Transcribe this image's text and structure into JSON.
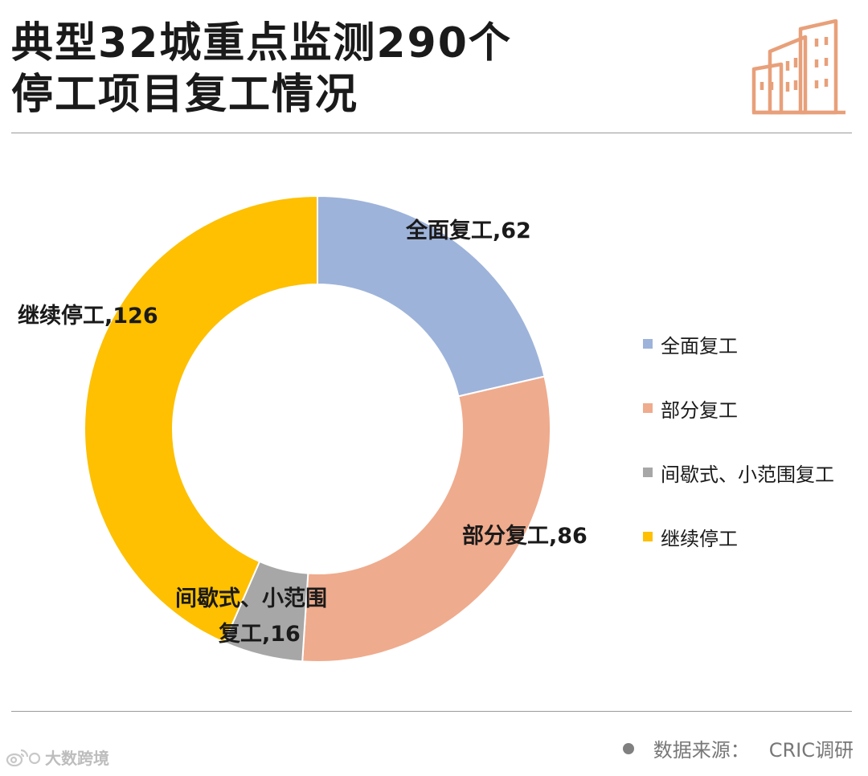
{
  "title": {
    "line1": "典型32城重点监测290个",
    "line2": "停工项目复工情况"
  },
  "icons": {
    "header": "buildings-icon",
    "watermark": "weibo-logo-icon"
  },
  "colors": {
    "full": "#9db3da",
    "partial": "#efab8d",
    "intermittent": "#a7a7a7",
    "stopped": "#fec000",
    "header_icon": "#e8a07a"
  },
  "chart_data": {
    "type": "pie",
    "variant": "donut",
    "title": "典型32城重点监测290个停工项目复工情况",
    "categories": [
      "全面复工",
      "部分复工",
      "间歇式、小范围复工",
      "继续停工"
    ],
    "values": [
      62,
      86,
      16,
      126
    ],
    "data_labels": [
      [
        "全面复工,62"
      ],
      [
        "部分复工,86"
      ],
      [
        "间歇式、小范围",
        "复工,16"
      ],
      [
        "继续停工,126"
      ]
    ],
    "legend": {
      "position": "right",
      "entries": [
        "全面复工",
        "部分复工",
        "间歇式、小范围复工",
        "继续停工"
      ]
    }
  },
  "source": {
    "label": "数据来源：",
    "value": "CRIC调研"
  },
  "watermark": {
    "text": "大数跨境"
  }
}
